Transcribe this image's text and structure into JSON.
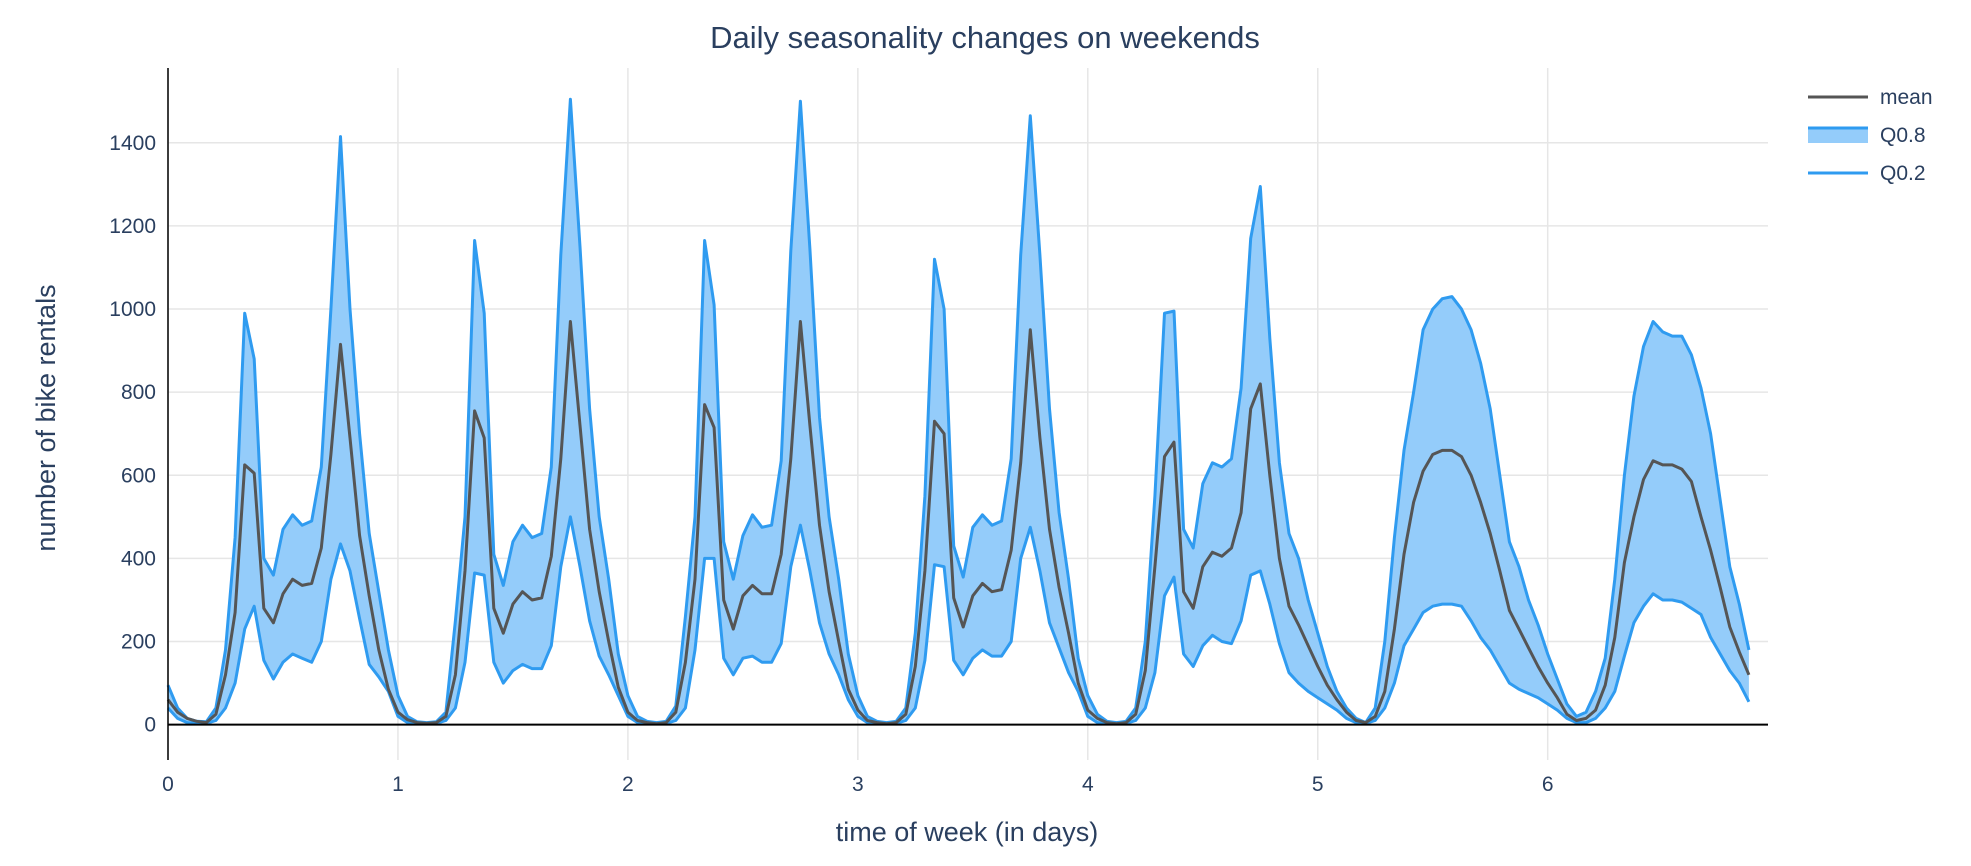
{
  "chart_data": {
    "type": "line",
    "title": "Daily seasonality changes on weekends",
    "xlabel": "time of week (in days)",
    "ylabel": "number of bike rentals",
    "xlim": [
      0,
      6.958
    ],
    "ylim": [
      -85,
      1580
    ],
    "x_ticks": [
      0,
      1,
      2,
      3,
      4,
      5,
      6
    ],
    "y_ticks": [
      0,
      200,
      400,
      600,
      800,
      1000,
      1200,
      1400
    ],
    "grid": true,
    "legend_position": "top-right",
    "x_step_hours": 1,
    "colors": {
      "mean": "#555555",
      "band_line": "#2f9bf0",
      "band_fill": "#94ccfa"
    },
    "legend": [
      {
        "key": "mean",
        "label": "mean"
      },
      {
        "key": "q08",
        "label": "Q0.8"
      },
      {
        "key": "q02",
        "label": "Q0.2"
      }
    ],
    "series": [
      {
        "name": "mean",
        "values": [
          60,
          30,
          15,
          8,
          5,
          25,
          120,
          270,
          625,
          605,
          280,
          245,
          315,
          350,
          335,
          340,
          425,
          650,
          915,
          690,
          455,
          310,
          180,
          85,
          30,
          12,
          5,
          3,
          5,
          20,
          120,
          370,
          755,
          690,
          280,
          220,
          290,
          320,
          300,
          305,
          405,
          640,
          970,
          720,
          470,
          320,
          200,
          90,
          30,
          10,
          5,
          2,
          5,
          30,
          150,
          350,
          770,
          715,
          300,
          230,
          310,
          335,
          315,
          315,
          410,
          640,
          970,
          720,
          480,
          320,
          200,
          85,
          35,
          10,
          5,
          2,
          5,
          25,
          140,
          370,
          730,
          700,
          305,
          235,
          310,
          340,
          320,
          325,
          420,
          630,
          950,
          690,
          470,
          330,
          220,
          100,
          35,
          15,
          5,
          2,
          5,
          25,
          130,
          380,
          645,
          680,
          320,
          280,
          380,
          415,
          405,
          425,
          510,
          760,
          820,
          600,
          400,
          285,
          240,
          190,
          140,
          95,
          60,
          30,
          10,
          5,
          20,
          80,
          230,
          410,
          535,
          610,
          650,
          660,
          660,
          645,
          600,
          535,
          460,
          370,
          275,
          230,
          185,
          140,
          100,
          65,
          25,
          10,
          15,
          35,
          95,
          210,
          390,
          500,
          590,
          635,
          625,
          625,
          615,
          585,
          500,
          420,
          330,
          235,
          175,
          120
        ]
      },
      {
        "name": "Q0.8",
        "values": [
          95,
          40,
          15,
          8,
          7,
          40,
          180,
          450,
          990,
          880,
          400,
          360,
          470,
          505,
          480,
          490,
          620,
          1000,
          1415,
          1000,
          700,
          460,
          320,
          180,
          70,
          20,
          7,
          5,
          7,
          30,
          250,
          500,
          1165,
          990,
          410,
          335,
          440,
          480,
          450,
          460,
          620,
          1130,
          1505,
          1150,
          760,
          500,
          350,
          170,
          70,
          20,
          8,
          5,
          8,
          45,
          260,
          500,
          1165,
          1010,
          440,
          350,
          455,
          505,
          475,
          480,
          635,
          1140,
          1500,
          1145,
          740,
          500,
          350,
          170,
          70,
          20,
          8,
          5,
          8,
          40,
          220,
          550,
          1120,
          1000,
          430,
          355,
          475,
          505,
          480,
          490,
          640,
          1130,
          1465,
          1130,
          760,
          510,
          350,
          160,
          70,
          25,
          8,
          5,
          8,
          40,
          200,
          550,
          990,
          995,
          470,
          425,
          580,
          630,
          620,
          640,
          810,
          1170,
          1295,
          930,
          630,
          460,
          400,
          300,
          220,
          140,
          80,
          40,
          15,
          5,
          40,
          200,
          450,
          660,
          800,
          950,
          1000,
          1025,
          1030,
          1000,
          950,
          870,
          760,
          600,
          440,
          380,
          300,
          240,
          170,
          110,
          50,
          20,
          30,
          80,
          160,
          350,
          600,
          790,
          910,
          970,
          945,
          935,
          935,
          890,
          810,
          700,
          540,
          380,
          290,
          180
        ]
      },
      {
        "name": "Q0.2",
        "values": [
          40,
          15,
          5,
          4,
          3,
          10,
          40,
          100,
          230,
          285,
          155,
          110,
          150,
          170,
          160,
          150,
          200,
          350,
          435,
          370,
          255,
          145,
          115,
          80,
          20,
          5,
          3,
          2,
          3,
          10,
          40,
          150,
          365,
          360,
          150,
          100,
          130,
          145,
          135,
          135,
          190,
          380,
          500,
          380,
          250,
          165,
          120,
          70,
          20,
          5,
          3,
          2,
          3,
          10,
          40,
          180,
          400,
          400,
          160,
          120,
          160,
          165,
          150,
          150,
          195,
          380,
          480,
          370,
          245,
          170,
          120,
          60,
          20,
          5,
          3,
          2,
          3,
          10,
          40,
          155,
          385,
          380,
          155,
          120,
          160,
          180,
          165,
          165,
          200,
          400,
          475,
          370,
          245,
          185,
          125,
          80,
          20,
          5,
          3,
          2,
          3,
          10,
          40,
          125,
          310,
          355,
          170,
          140,
          190,
          215,
          200,
          195,
          250,
          360,
          370,
          290,
          195,
          125,
          100,
          80,
          65,
          50,
          35,
          15,
          5,
          3,
          10,
          40,
          100,
          190,
          230,
          270,
          285,
          290,
          290,
          285,
          250,
          210,
          180,
          140,
          100,
          85,
          75,
          65,
          50,
          35,
          15,
          5,
          5,
          15,
          40,
          80,
          165,
          245,
          285,
          315,
          300,
          300,
          295,
          280,
          265,
          210,
          170,
          130,
          100,
          55
        ]
      }
    ]
  }
}
